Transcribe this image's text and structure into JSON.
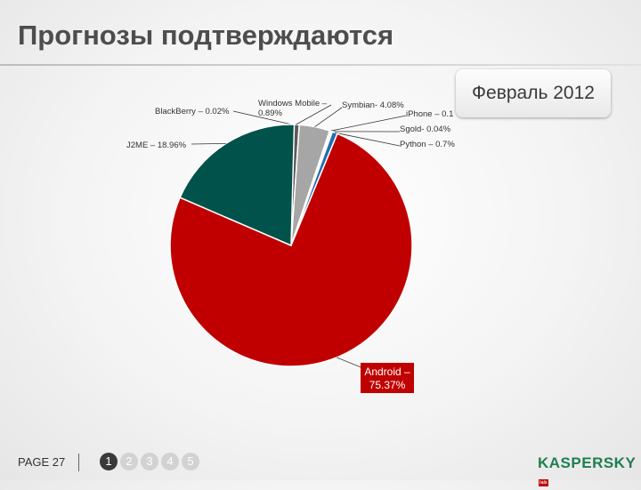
{
  "slide": {
    "title": "Прогнозы подтверждаются",
    "date_badge": "Февраль 2012"
  },
  "footer": {
    "page_label": "PAGE  27",
    "pager": [
      "1",
      "2",
      "3",
      "4",
      "5"
    ],
    "active_page": "1",
    "logo_text": "KASPERSKY",
    "logo_tag": "lab"
  },
  "colors": {
    "android": "#c00000",
    "j2me": "#00524a",
    "blackberry": "#3a3a2a",
    "windows_mobile": "#5a5a5a",
    "symbian": "#a6a6a6",
    "iphone": "#d9d9d9",
    "sgold": "#7f7f7f",
    "python": "#1f6fb0"
  },
  "chart_data": {
    "type": "pie",
    "title": "",
    "slices": [
      {
        "name": "BlackBerry",
        "label": "BlackBerry – 0.02%",
        "value": 0.02,
        "color": "#3a3a2a"
      },
      {
        "name": "Windows Mobile",
        "label": "Windows Mobile – 0.89%",
        "value": 0.89,
        "color": "#5a5a5a"
      },
      {
        "name": "Symbian",
        "label": "Symbian- 4.08%",
        "value": 4.08,
        "color": "#a6a6a6"
      },
      {
        "name": "iPhone",
        "label": "iPhone – 0.1",
        "value": 0.1,
        "color": "#d9d9d9"
      },
      {
        "name": "Sgold",
        "label": "Sgold- 0.04%",
        "value": 0.04,
        "color": "#7f7f7f"
      },
      {
        "name": "Python",
        "label": "Python – 0.7%",
        "value": 0.7,
        "color": "#1f6fb0"
      },
      {
        "name": "Android",
        "label": "Android – 75.37%",
        "value": 75.37,
        "color": "#c00000"
      },
      {
        "name": "J2ME",
        "label": "J2ME – 18.96%",
        "value": 18.96,
        "color": "#00524a"
      }
    ]
  }
}
